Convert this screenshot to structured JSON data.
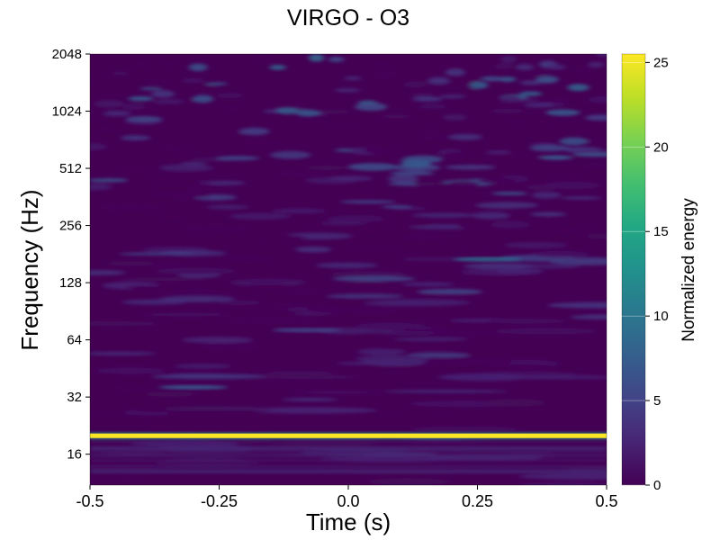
{
  "chart_data": {
    "type": "heatmap",
    "title": "VIRGO - O3",
    "xlabel": "Time (s)",
    "ylabel": "Frequency (Hz)",
    "x_ticks": [
      "-0.5",
      "-0.25",
      "0.0",
      "0.25",
      "0.5"
    ],
    "y_ticks": [
      "16",
      "32",
      "64",
      "128",
      "256",
      "512",
      "1024",
      "2048"
    ],
    "xlim": [
      -0.5,
      0.5
    ],
    "ylim": [
      11,
      2048
    ],
    "y_scale": "log2",
    "grid": false,
    "colorbar": {
      "label": "Normalized energy",
      "ticks": [
        "0",
        "5",
        "10",
        "15",
        "20",
        "25"
      ],
      "range": [
        0,
        25.5
      ],
      "colormap": "viridis"
    },
    "features": [
      {
        "kind": "line",
        "frequency_hz": 20,
        "energy": 25.5,
        "t_start": -0.5,
        "t_end": 0.5
      },
      {
        "kind": "blob",
        "time": -0.3,
        "frequency_hz": 36,
        "energy": 7
      },
      {
        "kind": "blob",
        "time": 0.27,
        "frequency_hz": 170,
        "energy": 9
      },
      {
        "kind": "blob",
        "time": -0.08,
        "frequency_hz": 72,
        "energy": 5
      }
    ],
    "colors": {
      "background": "#440154",
      "low": "#440154",
      "high": "#fde725"
    }
  }
}
